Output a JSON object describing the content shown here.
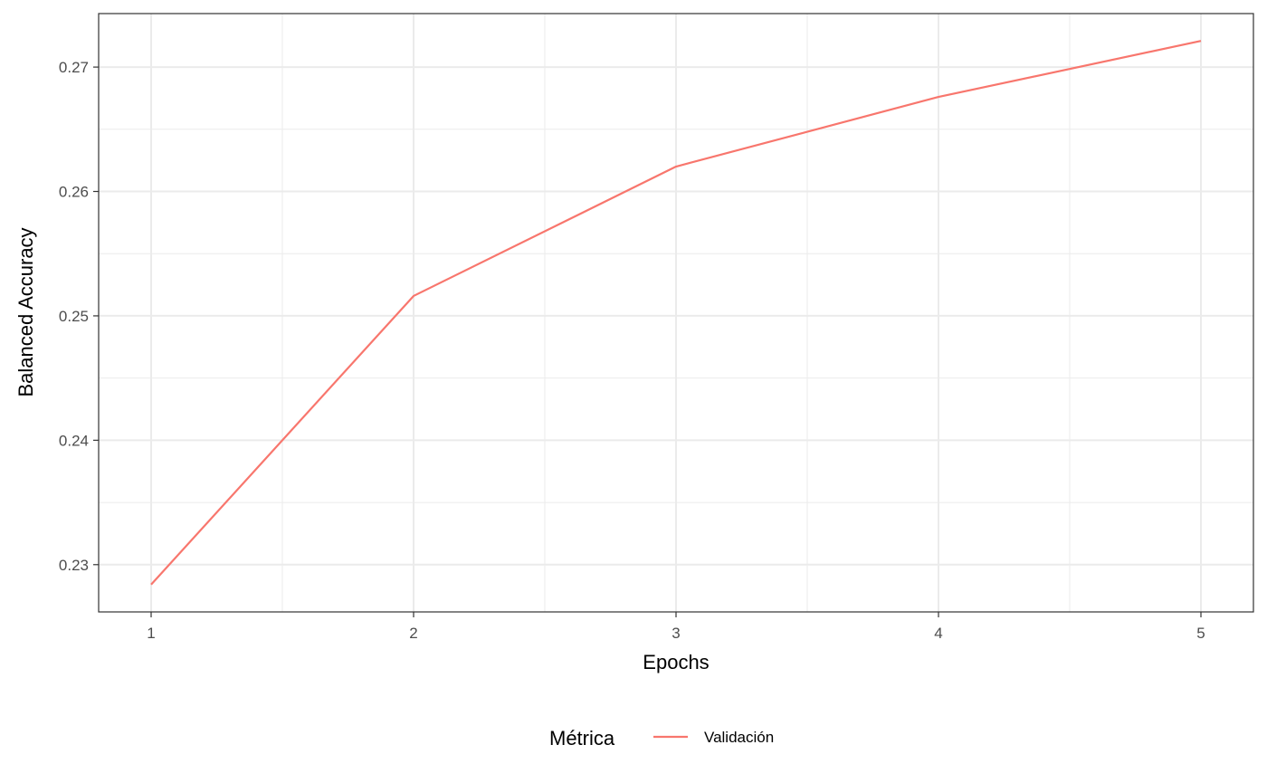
{
  "chart_data": {
    "type": "line",
    "xlabel": "Epochs",
    "ylabel": "Balanced Accuracy",
    "x": [
      1,
      2,
      3,
      4,
      5
    ],
    "series": [
      {
        "name": "Validación",
        "color": "#F8766D",
        "values": [
          0.2284,
          0.2516,
          0.262,
          0.2676,
          0.2721
        ]
      }
    ],
    "xlim": [
      0.8,
      5.2
    ],
    "ylim": [
      0.2262,
      0.2743
    ],
    "x_ticks": [
      "1",
      "2",
      "3",
      "4",
      "5"
    ],
    "y_ticks": [
      "0.23",
      "0.24",
      "0.25",
      "0.26",
      "0.27"
    ],
    "grid": true,
    "legend": {
      "title": "Métrica",
      "position": "bottom"
    }
  }
}
